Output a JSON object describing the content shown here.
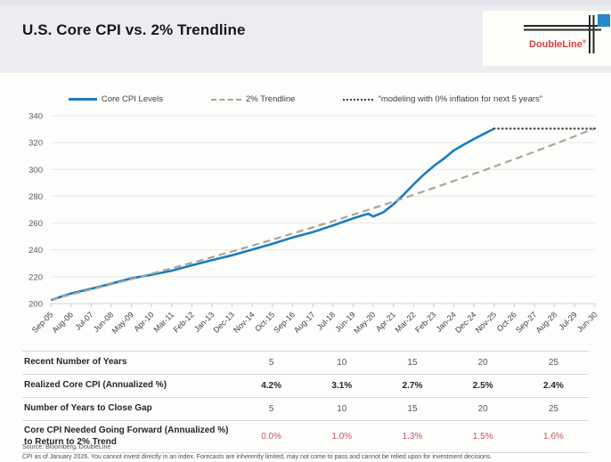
{
  "header": {
    "title": "U.S. Core CPI vs. 2% Trendline",
    "logo_text": "DoubleLine",
    "logo_reg_mark": "®"
  },
  "legend": {
    "items": [
      {
        "label": "Core CPI Levels",
        "style": "solid",
        "color": "#1b7bc0"
      },
      {
        "label": "2% Trendline",
        "style": "dashed",
        "color": "#a9a59c"
      },
      {
        "label": "\"modeling with 0% inflation for next 5 years\"",
        "style": "dotted",
        "color": "#3f3f3f"
      }
    ]
  },
  "chart_data": {
    "type": "line",
    "title": "U.S. Core CPI vs. 2% Trendline",
    "xlabel": "",
    "ylabel": "",
    "ylim": [
      200,
      340
    ],
    "yticks": [
      200,
      220,
      240,
      260,
      280,
      300,
      320,
      340
    ],
    "grid": "horizontal",
    "legend_position": "top",
    "x_labels": [
      "Sep-05",
      "Aug-06",
      "Jul-07",
      "Jun-08",
      "May-09",
      "Apr-10",
      "Mar-11",
      "Feb-12",
      "Jan-13",
      "Dec-13",
      "Nov-14",
      "Oct-15",
      "Sep-16",
      "Aug-17",
      "Jul-18",
      "Jun-19",
      "May-20",
      "Apr-21",
      "Mar-22",
      "Feb-23",
      "Jan-24",
      "Dec-24",
      "Nov-25",
      "Oct-26",
      "Sep-27",
      "Aug-28",
      "Jul-29",
      "Jun-30"
    ],
    "series": [
      {
        "name": "Core CPI Levels",
        "color": "#1b7bc0",
        "style": "solid",
        "points": [
          [
            0,
            202.6
          ],
          [
            1,
            207.5
          ],
          [
            2,
            211.0
          ],
          [
            3,
            214.8
          ],
          [
            4,
            218.8
          ],
          [
            5,
            221.5
          ],
          [
            6,
            224.5
          ],
          [
            7,
            228.5
          ],
          [
            8,
            232.3
          ],
          [
            9,
            236.0
          ],
          [
            10,
            240.2
          ],
          [
            11,
            244.5
          ],
          [
            12,
            249.2
          ],
          [
            13,
            253.2
          ],
          [
            14,
            258.2
          ],
          [
            15,
            263.4
          ],
          [
            15.5,
            265.8
          ],
          [
            15.75,
            266.9
          ],
          [
            16,
            264.9
          ],
          [
            16.25,
            266.5
          ],
          [
            16.5,
            268.0
          ],
          [
            17,
            274.0
          ],
          [
            17.5,
            281.0
          ],
          [
            18,
            288.8
          ],
          [
            18.5,
            296.0
          ],
          [
            19,
            302.5
          ],
          [
            19.5,
            308.0
          ],
          [
            20,
            314.2
          ],
          [
            20.5,
            318.5
          ],
          [
            21,
            322.7
          ],
          [
            21.5,
            326.5
          ],
          [
            22,
            330.4
          ]
        ]
      },
      {
        "name": "2% Trendline",
        "color": "#a9a59c",
        "style": "dashed",
        "points": [
          [
            0,
            203.0
          ],
          [
            1,
            206.7
          ],
          [
            2,
            210.5
          ],
          [
            3,
            214.3
          ],
          [
            4,
            218.2
          ],
          [
            5,
            222.2
          ],
          [
            6,
            226.3
          ],
          [
            7,
            230.4
          ],
          [
            8,
            234.6
          ],
          [
            9,
            238.9
          ],
          [
            10,
            243.2
          ],
          [
            11,
            247.6
          ],
          [
            12,
            252.2
          ],
          [
            13,
            256.8
          ],
          [
            14,
            261.4
          ],
          [
            15,
            266.2
          ],
          [
            16,
            271.0
          ],
          [
            17,
            276.0
          ],
          [
            18,
            281.0
          ],
          [
            19,
            286.1
          ],
          [
            20,
            291.4
          ],
          [
            21,
            296.7
          ],
          [
            22,
            302.1
          ],
          [
            23,
            307.6
          ],
          [
            24,
            313.2
          ],
          [
            25,
            318.9
          ],
          [
            26,
            324.7
          ],
          [
            27,
            330.7
          ]
        ]
      },
      {
        "name": "\"modeling with 0% inflation for next 5 years\"",
        "color": "#3f3f3f",
        "style": "dotted",
        "points": [
          [
            22,
            330.4
          ],
          [
            27,
            330.4
          ]
        ]
      }
    ]
  },
  "table": {
    "rows": [
      {
        "label": "Recent Number of Years",
        "values": [
          "5",
          "10",
          "15",
          "20",
          "25"
        ]
      },
      {
        "label": "Realized Core CPI (Annualized %)",
        "values": [
          "4.2%",
          "3.1%",
          "2.7%",
          "2.5%",
          "2.4%"
        ]
      },
      {
        "label": "Number of Years to Close Gap",
        "values": [
          "5",
          "10",
          "15",
          "20",
          "25"
        ]
      },
      {
        "label": "Core CPI Needed Going Forward (Annualized %) to Return to 2% Trend",
        "values": [
          "0.0%",
          "1.0%",
          "1.3%",
          "1.5%",
          "1.6%"
        ]
      }
    ]
  },
  "footer": {
    "source_line": "Source: Bloomberg, DoubleLine",
    "disclaimer_line": "CPI as of January 2026. You cannot invest directly in an index. Forecasts are inherently limited, may not come to pass and cannot be relied upon for investment decisions."
  },
  "colors": {
    "header_bg": "#ecedf0",
    "core_cpi_line": "#1b7bc0",
    "trendline": "#a9a59c",
    "dotted_line": "#3f3f3f",
    "table_red": "#cc525c",
    "logo_red": "#e23b3d",
    "logo_blue": "#2389cb",
    "gridline": "#e7e7e7"
  }
}
